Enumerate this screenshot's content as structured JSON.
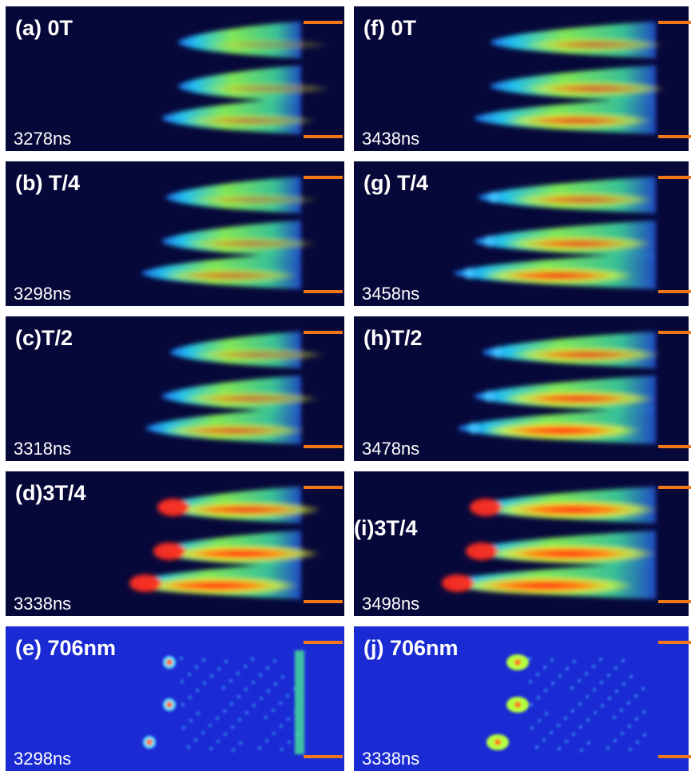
{
  "panels": [
    {
      "label": "(a) 0T",
      "time": "3278ns"
    },
    {
      "label": "(b) T/4",
      "time": "3298ns"
    },
    {
      "label": "(c)T/2",
      "time": "3318ns"
    },
    {
      "label": "(d)3T/4",
      "time": "3338ns"
    },
    {
      "label": "(e) 706nm",
      "time": "3298ns"
    },
    {
      "label": "(f) 0T",
      "time": "3438ns"
    },
    {
      "label": "(g) T/4",
      "time": "3458ns"
    },
    {
      "label": "(h)T/2",
      "time": "3478ns"
    },
    {
      "label": "(i)3T/4",
      "time": "3498ns"
    },
    {
      "label": "(j) 706nm",
      "time": "3338ns"
    }
  ]
}
